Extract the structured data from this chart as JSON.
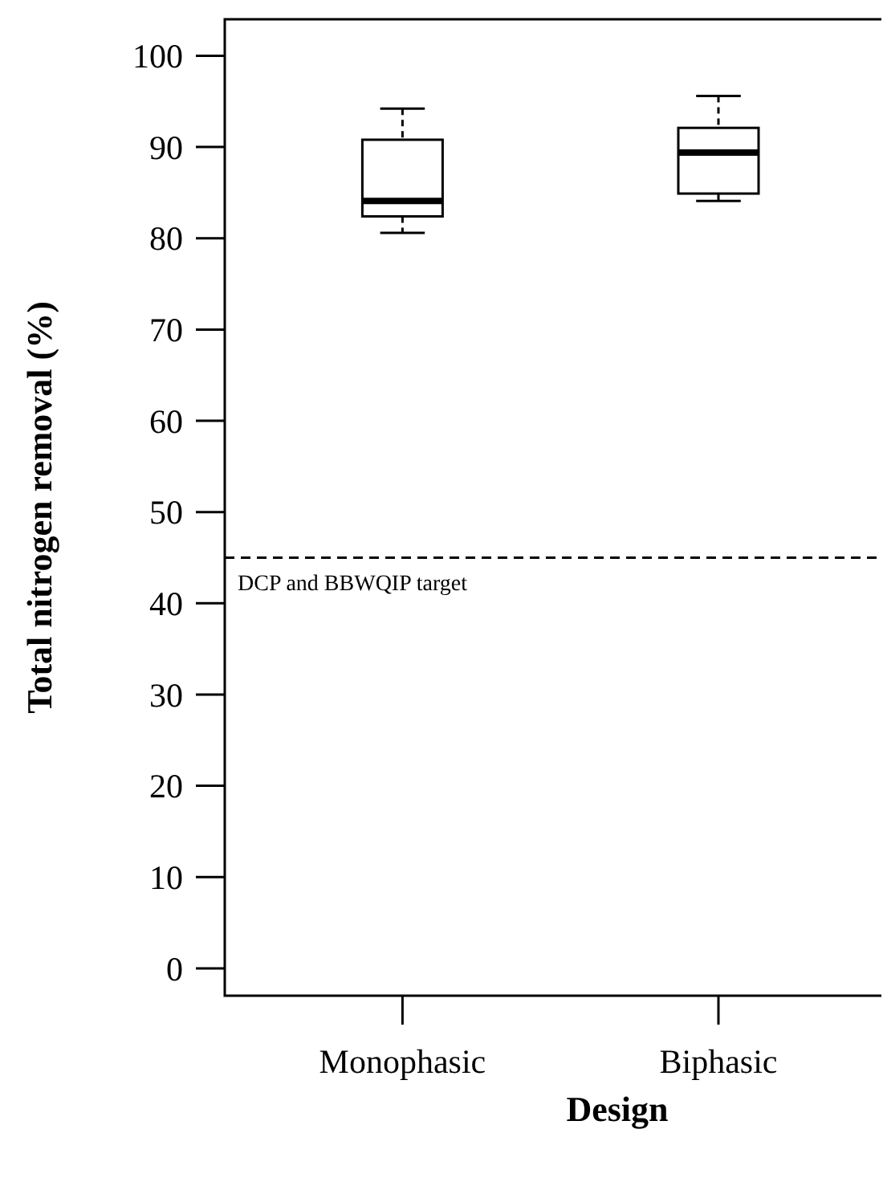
{
  "chart_data": {
    "type": "box",
    "xlabel": "Design",
    "ylabel": "Total nitrogen removal (%)",
    "categories": [
      "Monophasic",
      "Biphasic"
    ],
    "boxes": [
      {
        "low": 80.6,
        "q1": 82.4,
        "median": 84.1,
        "q3": 90.8,
        "high": 94.2
      },
      {
        "low": 84.1,
        "q1": 84.9,
        "median": 89.4,
        "q3": 92.1,
        "high": 95.6
      }
    ],
    "ylim": [
      -3,
      104
    ],
    "yticks": [
      0,
      10,
      20,
      30,
      40,
      50,
      60,
      70,
      80,
      90,
      100
    ],
    "ref_lines": [
      {
        "axis": "y",
        "value": 45,
        "label": "DCP and BBWQIP target",
        "line_style": "dashed"
      }
    ]
  }
}
